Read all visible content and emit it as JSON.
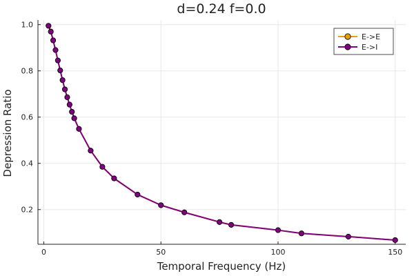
{
  "chart_data": {
    "type": "line",
    "title": "d=0.24 f=0.0",
    "xlabel": "Temporal Frequency (Hz)",
    "ylabel": "Depression Ratio",
    "xlim": [
      -2.5,
      154.5
    ],
    "ylim": [
      0.05,
      1.02
    ],
    "xticks": [
      0,
      50,
      100,
      150
    ],
    "yticks": [
      0.2,
      0.4,
      0.6,
      0.8,
      1.0
    ],
    "xtick_labels": [
      "0",
      "50",
      "100",
      "150"
    ],
    "ytick_labels": [
      "0.2",
      "0.4",
      "0.6",
      "0.8",
      "1.0"
    ],
    "grid": true,
    "legend_position": "top-right",
    "x": [
      2,
      3,
      4,
      5,
      6,
      7,
      8,
      9,
      10,
      11,
      12,
      13,
      15,
      20,
      25,
      30,
      40,
      50,
      60,
      75,
      80,
      100,
      110,
      130,
      150
    ],
    "series": [
      {
        "name": "E->E",
        "color": "#e69f00",
        "values": [
          0.995,
          0.97,
          0.932,
          0.89,
          0.845,
          0.802,
          0.76,
          0.72,
          0.686,
          0.654,
          0.623,
          0.595,
          0.549,
          0.455,
          0.385,
          0.335,
          0.265,
          0.219,
          0.188,
          0.146,
          0.134,
          0.111,
          0.097,
          0.083,
          0.068
        ]
      },
      {
        "name": "E->I",
        "color": "#800080",
        "values": [
          0.995,
          0.97,
          0.932,
          0.89,
          0.845,
          0.802,
          0.76,
          0.72,
          0.686,
          0.654,
          0.623,
          0.595,
          0.549,
          0.455,
          0.385,
          0.335,
          0.265,
          0.219,
          0.188,
          0.146,
          0.134,
          0.111,
          0.097,
          0.083,
          0.068
        ]
      }
    ]
  }
}
